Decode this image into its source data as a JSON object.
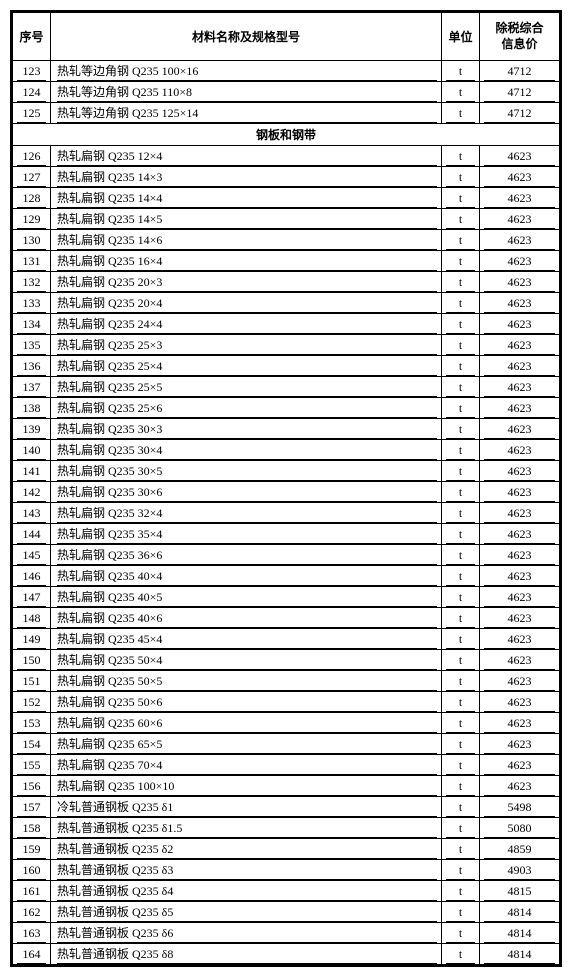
{
  "header": {
    "seq": "序号",
    "name": "材料名称及规格型号",
    "unit": "单位",
    "price": "除税综合\n信息价"
  },
  "section_header": "钢板和钢带",
  "rows_before": [
    {
      "seq": "123",
      "name": "热轧等边角钢 Q235 100×16",
      "unit": "t",
      "price": "4712"
    },
    {
      "seq": "124",
      "name": "热轧等边角钢 Q235 110×8",
      "unit": "t",
      "price": "4712"
    },
    {
      "seq": "125",
      "name": "热轧等边角钢 Q235 125×14",
      "unit": "t",
      "price": "4712"
    }
  ],
  "rows_after": [
    {
      "seq": "126",
      "name": "热轧扁钢 Q235 12×4",
      "unit": "t",
      "price": "4623"
    },
    {
      "seq": "127",
      "name": "热轧扁钢 Q235 14×3",
      "unit": "t",
      "price": "4623"
    },
    {
      "seq": "128",
      "name": "热轧扁钢 Q235 14×4",
      "unit": "t",
      "price": "4623"
    },
    {
      "seq": "129",
      "name": "热轧扁钢 Q235 14×5",
      "unit": "t",
      "price": "4623"
    },
    {
      "seq": "130",
      "name": "热轧扁钢 Q235 14×6",
      "unit": "t",
      "price": "4623"
    },
    {
      "seq": "131",
      "name": "热轧扁钢 Q235 16×4",
      "unit": "t",
      "price": "4623"
    },
    {
      "seq": "132",
      "name": "热轧扁钢 Q235 20×3",
      "unit": "t",
      "price": "4623"
    },
    {
      "seq": "133",
      "name": "热轧扁钢 Q235 20×4",
      "unit": "t",
      "price": "4623"
    },
    {
      "seq": "134",
      "name": "热轧扁钢 Q235 24×4",
      "unit": "t",
      "price": "4623"
    },
    {
      "seq": "135",
      "name": "热轧扁钢 Q235 25×3",
      "unit": "t",
      "price": "4623"
    },
    {
      "seq": "136",
      "name": "热轧扁钢 Q235 25×4",
      "unit": "t",
      "price": "4623"
    },
    {
      "seq": "137",
      "name": "热轧扁钢 Q235 25×5",
      "unit": "t",
      "price": "4623"
    },
    {
      "seq": "138",
      "name": "热轧扁钢 Q235 25×6",
      "unit": "t",
      "price": "4623"
    },
    {
      "seq": "139",
      "name": "热轧扁钢 Q235 30×3",
      "unit": "t",
      "price": "4623"
    },
    {
      "seq": "140",
      "name": "热轧扁钢 Q235 30×4",
      "unit": "t",
      "price": "4623"
    },
    {
      "seq": "141",
      "name": "热轧扁钢 Q235 30×5",
      "unit": "t",
      "price": "4623"
    },
    {
      "seq": "142",
      "name": "热轧扁钢 Q235 30×6",
      "unit": "t",
      "price": "4623"
    },
    {
      "seq": "143",
      "name": "热轧扁钢 Q235 32×4",
      "unit": "t",
      "price": "4623"
    },
    {
      "seq": "144",
      "name": "热轧扁钢 Q235 35×4",
      "unit": "t",
      "price": "4623"
    },
    {
      "seq": "145",
      "name": "热轧扁钢 Q235 36×6",
      "unit": "t",
      "price": "4623"
    },
    {
      "seq": "146",
      "name": "热轧扁钢 Q235 40×4",
      "unit": "t",
      "price": "4623"
    },
    {
      "seq": "147",
      "name": "热轧扁钢 Q235 40×5",
      "unit": "t",
      "price": "4623"
    },
    {
      "seq": "148",
      "name": "热轧扁钢 Q235 40×6",
      "unit": "t",
      "price": "4623"
    },
    {
      "seq": "149",
      "name": "热轧扁钢 Q235 45×4",
      "unit": "t",
      "price": "4623"
    },
    {
      "seq": "150",
      "name": "热轧扁钢 Q235 50×4",
      "unit": "t",
      "price": "4623"
    },
    {
      "seq": "151",
      "name": "热轧扁钢 Q235 50×5",
      "unit": "t",
      "price": "4623"
    },
    {
      "seq": "152",
      "name": "热轧扁钢 Q235 50×6",
      "unit": "t",
      "price": "4623"
    },
    {
      "seq": "153",
      "name": "热轧扁钢 Q235 60×6",
      "unit": "t",
      "price": "4623"
    },
    {
      "seq": "154",
      "name": "热轧扁钢 Q235 65×5",
      "unit": "t",
      "price": "4623"
    },
    {
      "seq": "155",
      "name": "热轧扁钢 Q235 70×4",
      "unit": "t",
      "price": "4623"
    },
    {
      "seq": "156",
      "name": "热轧扁钢 Q235 100×10",
      "unit": "t",
      "price": "4623"
    },
    {
      "seq": "157",
      "name": "冷轧普通钢板 Q235 δ1",
      "unit": "t",
      "price": "5498"
    },
    {
      "seq": "158",
      "name": "热轧普通钢板 Q235 δ1.5",
      "unit": "t",
      "price": "5080"
    },
    {
      "seq": "159",
      "name": "热轧普通钢板 Q235 δ2",
      "unit": "t",
      "price": "4859"
    },
    {
      "seq": "160",
      "name": "热轧普通钢板 Q235 δ3",
      "unit": "t",
      "price": "4903"
    },
    {
      "seq": "161",
      "name": "热轧普通钢板 Q235 δ4",
      "unit": "t",
      "price": "4815"
    },
    {
      "seq": "162",
      "name": "热轧普通钢板 Q235 δ5",
      "unit": "t",
      "price": "4814"
    },
    {
      "seq": "163",
      "name": "热轧普通钢板 Q235 δ6",
      "unit": "t",
      "price": "4814"
    },
    {
      "seq": "164",
      "name": "热轧普通钢板 Q235 δ8",
      "unit": "t",
      "price": "4814"
    }
  ]
}
